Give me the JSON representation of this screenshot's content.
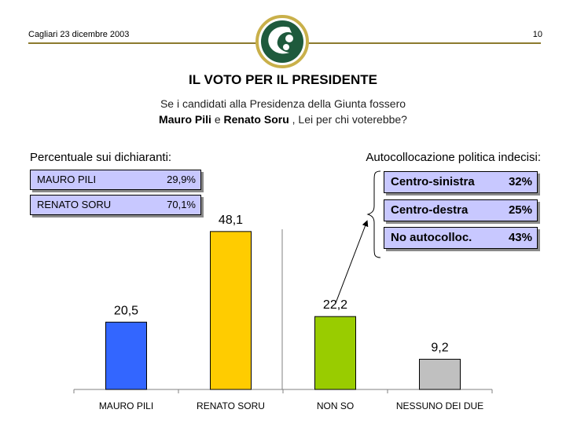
{
  "header": {
    "date_place": "Cagliari 23 dicembre 2003",
    "page_number": "10",
    "line_color": "#8c7a2e",
    "logo_icon": "stylized-c-logo",
    "logo_color": "#1e5a3c"
  },
  "title": "IL VOTO PER IL PRESIDENTE",
  "question": {
    "line1": "Se i candidati alla Presidenza della Giunta fossero",
    "candidate1": "Mauro Pili",
    "conj": "e",
    "candidate2": "Renato Soru",
    "tail": ", Lei per chi voterebbe?"
  },
  "declared_panel": {
    "label": "Percentuale sui dichiaranti:",
    "rows": [
      {
        "name": "MAURO PILI",
        "pct": "29,9%"
      },
      {
        "name": "RENATO SORU",
        "pct": "70,1%"
      }
    ]
  },
  "undecided_panel": {
    "label": "Autocollocazione politica indecisi:",
    "rows": [
      {
        "name": "Centro-sinistra",
        "pct": "32%"
      },
      {
        "name": "Centro-destra",
        "pct": "25%"
      },
      {
        "name": "No autocolloc.",
        "pct": "43%"
      }
    ]
  },
  "chart_data": {
    "type": "bar",
    "categories": [
      "MAURO PILI",
      "RENATO SORU",
      "NON SO",
      "NESSUNO DEI DUE"
    ],
    "values": [
      20.5,
      48.1,
      22.2,
      9.2
    ],
    "value_labels": [
      "20,5",
      "48,1",
      "22,2",
      "9,2"
    ],
    "colors": [
      "#3366ff",
      "#ffcc00",
      "#99cc00",
      "#c0c0c0"
    ],
    "ylim": [
      0,
      55
    ],
    "grid": false,
    "title": "",
    "xlabel": "",
    "ylabel": ""
  }
}
